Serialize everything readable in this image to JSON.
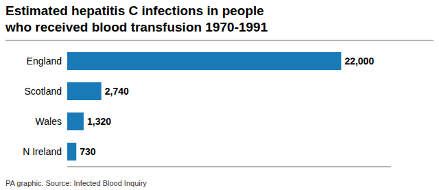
{
  "chart_data": {
    "type": "bar",
    "orientation": "horizontal",
    "title": "Estimated hepatitis C infections in people",
    "subtitle": "who received blood transfusion 1970-1991",
    "annotations": [
      "PA graphic. Source: Infected Blood Inquiry"
    ],
    "categories": [
      "England",
      "Scotland",
      "Wales",
      "N Ireland"
    ],
    "values": [
      22000,
      2740,
      1320,
      730
    ],
    "value_labels": [
      "22,000",
      "2,740",
      "1,320",
      "730"
    ],
    "data_labels": true,
    "color": "#1a7ab8",
    "xlim": [
      0,
      26000
    ],
    "tick_labels": "y",
    "grid": false
  }
}
